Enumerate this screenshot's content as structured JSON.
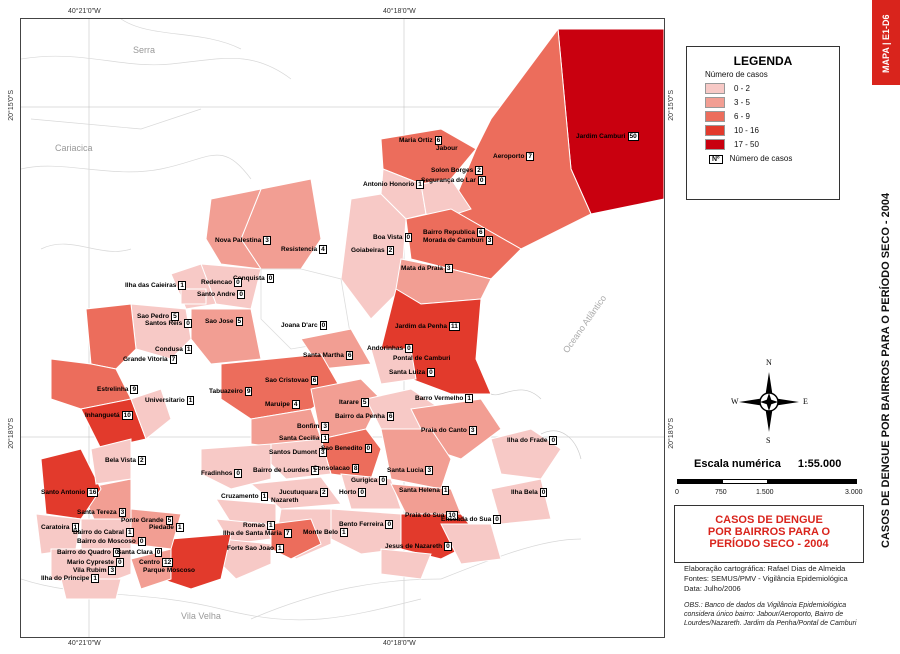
{
  "coords": {
    "top_left": "40°21'0\"W",
    "top_right": "40°18'0\"W",
    "bottom_left": "40°21'0\"W",
    "bottom_right": "40°18'0\"W",
    "left_top": "20°15'0\"S",
    "left_bottom": "20°18'0\"S",
    "right_top": "20°15'0\"S",
    "right_bottom": "20°18'0\"S"
  },
  "places": {
    "serra": "Serra",
    "cariacica": "Cariacica",
    "vila_velha": "Vila Velha",
    "oceano": "Oceano Atlântico"
  },
  "legend": {
    "title": "LEGENDA",
    "subtitle": "Número de casos",
    "classes": [
      {
        "label": "0 - 2",
        "color": "#f7c9c6"
      },
      {
        "label": "3 - 5",
        "color": "#f29e93"
      },
      {
        "label": "6 - 9",
        "color": "#ec6d5c"
      },
      {
        "label": "10 - 16",
        "color": "#e23a2c"
      },
      {
        "label": "17 - 50",
        "color": "#c9000f"
      }
    ],
    "marker_symbol": "Nº",
    "marker_label": "Número de casos"
  },
  "compass": {
    "n": "N",
    "s": "S",
    "e": "E",
    "w": "W"
  },
  "scale": {
    "title": "Escala numérica",
    "ratio": "1:55.000",
    "ticks": [
      "0",
      "750",
      "1.500",
      "3.000"
    ]
  },
  "title": {
    "line1": "CASOS DE DENGUE",
    "line2": "POR BAIRROS PARA O",
    "line3": "PERÍODO SECO - 2004"
  },
  "credits": {
    "line1": "Elaboração cartográfica: Rafael Dias de Almeida",
    "line2": "Fontes: SEMUS/PMV - Vigilância Epidemiológica",
    "line3": "Data: Julho/2006"
  },
  "obs": "OBS.: Banco de dados da Vigilância Epidemiológica considera único bairro: Jabour/Aeroporto, Bairro de Lourdes/Nazareth. Jardim da Penha/Pontal de Camburi",
  "sidebar": {
    "code": "MAPA | E1-D6",
    "title": "CASOS DE DENGUE POR BAIRROS PARA O PERÍODO SECO - 2004"
  },
  "bairros": [
    {
      "name": "Jardim Camburi",
      "cases": "50"
    },
    {
      "name": "Maria Ortiz",
      "cases": "6"
    },
    {
      "name": "Jabour",
      "cases": ""
    },
    {
      "name": "Aeroporto",
      "cases": "7"
    },
    {
      "name": "Solon Borges",
      "cases": "2"
    },
    {
      "name": "Segurança do Lar",
      "cases": "0"
    },
    {
      "name": "Antonio Honorio",
      "cases": "1"
    },
    {
      "name": "Boa Vista",
      "cases": "0"
    },
    {
      "name": "Bairro Republica",
      "cases": "6"
    },
    {
      "name": "Morada de Camburi",
      "cases": "3"
    },
    {
      "name": "Goiabeiras",
      "cases": "2"
    },
    {
      "name": "Mata da Praia",
      "cases": "3"
    },
    {
      "name": "Nova Palestina",
      "cases": "3"
    },
    {
      "name": "Resistencia",
      "cases": "4"
    },
    {
      "name": "Conquista",
      "cases": "0"
    },
    {
      "name": "Redencao",
      "cases": "0"
    },
    {
      "name": "Santo Andre",
      "cases": "0"
    },
    {
      "name": "Ilha das Caieiras",
      "cases": "1"
    },
    {
      "name": "Sao Pedro",
      "cases": "5"
    },
    {
      "name": "Santos Reis",
      "cases": "0"
    },
    {
      "name": "Sao Jose",
      "cases": "5"
    },
    {
      "name": "Joana D'arc",
      "cases": "0"
    },
    {
      "name": "Jardim da Penha",
      "cases": "11"
    },
    {
      "name": "Condusa",
      "cases": "1"
    },
    {
      "name": "Grande Vitoria",
      "cases": "7"
    },
    {
      "name": "Santa Martha",
      "cases": "6"
    },
    {
      "name": "Andorinhas",
      "cases": "0"
    },
    {
      "name": "Pontal de Camburi",
      "cases": ""
    },
    {
      "name": "Santa Luiza",
      "cases": "0"
    },
    {
      "name": "Estrelinha",
      "cases": "9"
    },
    {
      "name": "Sao Cristovao",
      "cases": "6"
    },
    {
      "name": "Tabuazeiro",
      "cases": "9"
    },
    {
      "name": "Universitario",
      "cases": "1"
    },
    {
      "name": "Inhanguetá",
      "cases": "10"
    },
    {
      "name": "Maruipe",
      "cases": "4"
    },
    {
      "name": "Itarare",
      "cases": "5"
    },
    {
      "name": "Bairro da Penha",
      "cases": "6"
    },
    {
      "name": "Barro Vermelho",
      "cases": "1"
    },
    {
      "name": "Praia do Canto",
      "cases": "3"
    },
    {
      "name": "Bonfim",
      "cases": "3"
    },
    {
      "name": "Santa Cecilia",
      "cases": "1"
    },
    {
      "name": "Santos Dumont",
      "cases": "3"
    },
    {
      "name": "Sao Benedito",
      "cases": "0"
    },
    {
      "name": "Bela Vista",
      "cases": "2"
    },
    {
      "name": "Fradinhos",
      "cases": "0"
    },
    {
      "name": "Bairro de Lourdes",
      "cases": "1"
    },
    {
      "name": "Consolacao",
      "cases": "8"
    },
    {
      "name": "Santa Lucia",
      "cases": "3"
    },
    {
      "name": "Ilha do Frade",
      "cases": "0"
    },
    {
      "name": "Gurigica",
      "cases": "0"
    },
    {
      "name": "Santo Antonio",
      "cases": "16"
    },
    {
      "name": "Cruzamento",
      "cases": "1"
    },
    {
      "name": "Jucutuquara",
      "cases": "2"
    },
    {
      "name": "Nazareth",
      "cases": ""
    },
    {
      "name": "Horto",
      "cases": "0"
    },
    {
      "name": "Santa Helena",
      "cases": "1"
    },
    {
      "name": "Ilha Bela",
      "cases": "0"
    },
    {
      "name": "Santa Tereza",
      "cases": "3"
    },
    {
      "name": "Caratoira",
      "cases": "1"
    },
    {
      "name": "Ponte Grande",
      "cases": "5"
    },
    {
      "name": "Bairro do Cabral",
      "cases": "1"
    },
    {
      "name": "Piedade",
      "cases": "1"
    },
    {
      "name": "Bairro do Moscoso",
      "cases": "0"
    },
    {
      "name": "Romao",
      "cases": "1"
    },
    {
      "name": "Ilha de Santa Maria",
      "cases": "7"
    },
    {
      "name": "Monte Belo",
      "cases": "1"
    },
    {
      "name": "Bento Ferreira",
      "cases": "0"
    },
    {
      "name": "Praia do Sua",
      "cases": "10"
    },
    {
      "name": "Enseada do Sua",
      "cases": "0"
    },
    {
      "name": "Bairro do Quadro",
      "cases": "0"
    },
    {
      "name": "Santa Clara",
      "cases": "0"
    },
    {
      "name": "Mario Cypreste",
      "cases": "0"
    },
    {
      "name": "Vila Rubim",
      "cases": "3"
    },
    {
      "name": "Centro",
      "cases": "12"
    },
    {
      "name": "Parque Moscoso",
      "cases": ""
    },
    {
      "name": "Forte Sao Joao",
      "cases": "1"
    },
    {
      "name": "Jesus de Nazareth",
      "cases": "0"
    },
    {
      "name": "Ilha do Principe",
      "cases": "1"
    }
  ]
}
